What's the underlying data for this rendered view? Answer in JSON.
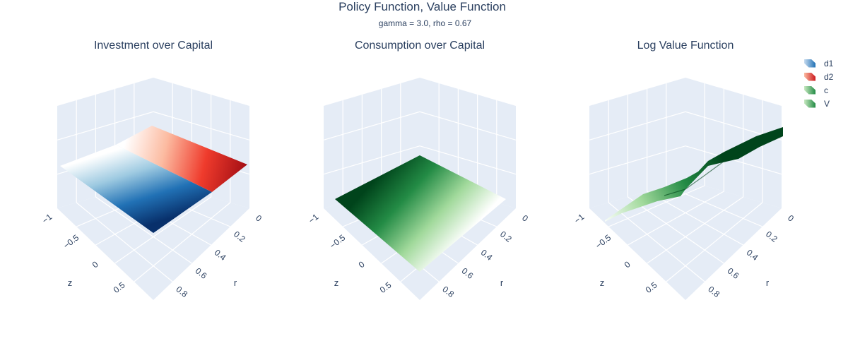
{
  "title": "Policy Function, Value Function",
  "subtitle": "gamma = 3.0, rho = 0.67",
  "legend": [
    {
      "label": "d1",
      "colors": [
        "#c6dbef",
        "#2171b5"
      ]
    },
    {
      "label": "d2",
      "colors": [
        "#fcbba1",
        "#cb181d"
      ]
    },
    {
      "label": "c",
      "colors": [
        "#c7e9c0",
        "#238b45"
      ]
    },
    {
      "label": "V",
      "colors": [
        "#c7e9c0",
        "#238b45"
      ]
    }
  ],
  "colors": {
    "scene_bg": "#e5ecf6",
    "grid": "#ffffff",
    "text": "#2a3f5f",
    "blues": [
      "#08306b",
      "#2171b5",
      "#9ecae1",
      "#ffffff"
    ],
    "reds": [
      "#ffffff",
      "#fcbba1",
      "#ef3b2c",
      "#a50f15"
    ],
    "greens": [
      "#ffffff",
      "#a1d99b",
      "#238b45",
      "#00441b"
    ]
  },
  "chart_data": [
    {
      "type": "surface",
      "title": "Investment over Capital",
      "xlabel": "r",
      "ylabel": "z",
      "x_ticks": [
        "0",
        "0.2",
        "0.4",
        "0.6",
        "0.8"
      ],
      "y_ticks": [
        "−1",
        "−0.5",
        "0",
        "0.5"
      ],
      "series": [
        {
          "name": "d1",
          "colorscale": "Blues",
          "z_at_corners": {
            "r0_zlow": 0.55,
            "r1_zlow": 0.05,
            "r1_zhigh": 0.75,
            "r0_zhigh": 0.9
          }
        },
        {
          "name": "d2",
          "colorscale": "Reds",
          "z_at_corners": {
            "r0_zlow": 0.9,
            "r1_zlow": 0.75,
            "r1_zhigh": 0.6,
            "r0_zhigh": 1.0
          }
        }
      ]
    },
    {
      "type": "surface",
      "title": "Consumption over Capital",
      "xlabel": "r",
      "ylabel": "z",
      "x_ticks": [
        "0",
        "0.2",
        "0.4",
        "0.6",
        "0.8"
      ],
      "y_ticks": [
        "−1",
        "−0.5",
        "0",
        "0.5"
      ],
      "series": [
        {
          "name": "c",
          "colorscale": "Greens",
          "z_at_corners": {
            "r0_zlow": 0.55,
            "r1_zlow": 0.25,
            "r1_zhigh": 0.55,
            "r0_zhigh": 0.75
          }
        }
      ]
    },
    {
      "type": "surface",
      "title": "Log Value Function",
      "xlabel": "r",
      "ylabel": "z",
      "x_ticks": [
        "0",
        "0.2",
        "0.4",
        "0.6",
        "0.8"
      ],
      "y_ticks": [
        "−1",
        "−0.5",
        "0",
        "0.5"
      ],
      "series": [
        {
          "name": "V",
          "colorscale": "Greens",
          "shape": "ridge rising from low z to high z"
        }
      ]
    }
  ]
}
